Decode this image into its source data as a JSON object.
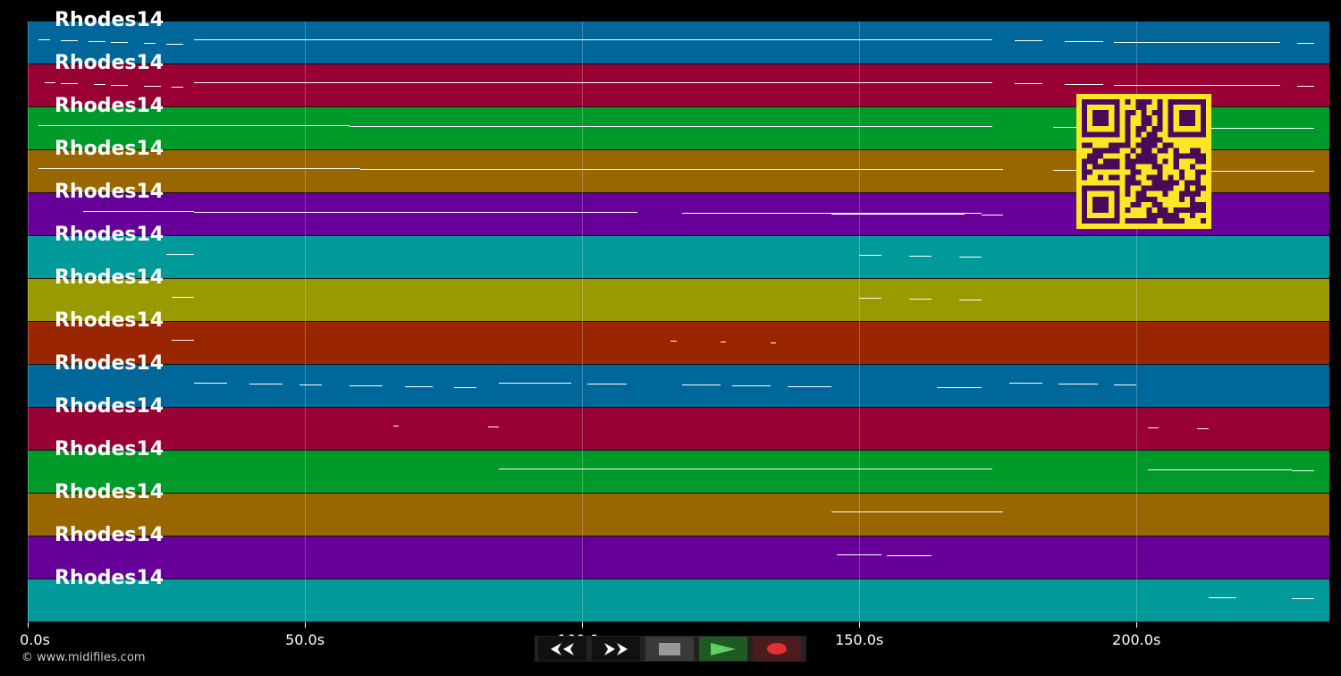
{
  "tracks": [
    {
      "label": "Rhodes14",
      "color": "#00679a",
      "notes": [
        [
          2,
          4
        ],
        [
          6,
          9
        ],
        [
          11,
          14
        ],
        [
          15,
          18
        ],
        [
          21,
          23
        ],
        [
          25,
          28
        ],
        [
          30,
          174
        ],
        [
          178,
          183
        ],
        [
          187,
          194
        ],
        [
          196,
          226
        ],
        [
          229,
          232
        ]
      ]
    },
    {
      "label": "Rhodes14",
      "color": "#990033",
      "notes": [
        [
          3,
          5
        ],
        [
          6,
          9
        ],
        [
          12,
          14
        ],
        [
          15,
          18
        ],
        [
          21,
          24
        ],
        [
          26,
          28
        ],
        [
          30,
          174
        ],
        [
          178,
          183
        ],
        [
          187,
          194
        ],
        [
          196,
          226
        ],
        [
          229,
          232
        ]
      ]
    },
    {
      "label": "Rhodes14",
      "color": "#009a2a",
      "notes": [
        [
          2,
          58
        ],
        [
          58,
          174
        ],
        [
          185,
          194
        ],
        [
          200,
          232
        ]
      ]
    },
    {
      "label": "Rhodes14",
      "color": "#996600",
      "notes": [
        [
          2,
          60
        ],
        [
          60,
          176
        ],
        [
          185,
          194
        ],
        [
          200,
          232
        ]
      ]
    },
    {
      "label": "Rhodes14",
      "color": "#660099",
      "notes": [
        [
          10,
          30
        ],
        [
          30,
          110
        ],
        [
          118,
          172
        ],
        [
          145,
          169
        ],
        [
          172,
          176
        ]
      ]
    },
    {
      "label": "Rhodes14",
      "color": "#009a9a",
      "notes": [
        [
          25,
          30
        ],
        [
          150,
          154
        ],
        [
          159,
          163
        ],
        [
          168,
          172
        ]
      ]
    },
    {
      "label": "Rhodes14",
      "color": "#999900",
      "notes": [
        [
          26,
          30
        ],
        [
          150,
          154
        ],
        [
          159,
          163
        ],
        [
          168,
          172
        ]
      ]
    },
    {
      "label": "Rhodes14",
      "color": "#992600",
      "notes": [
        [
          26,
          30
        ],
        [
          116,
          117
        ],
        [
          125,
          126
        ],
        [
          134,
          135
        ]
      ]
    },
    {
      "label": "Rhodes14",
      "color": "#00679a",
      "notes": [
        [
          30,
          36
        ],
        [
          40,
          46
        ],
        [
          49,
          53
        ],
        [
          58,
          64
        ],
        [
          68,
          73
        ],
        [
          77,
          81
        ],
        [
          85,
          98
        ],
        [
          101,
          108
        ],
        [
          118,
          125
        ],
        [
          127,
          134
        ],
        [
          137,
          145
        ],
        [
          164,
          172
        ],
        [
          177,
          183
        ],
        [
          186,
          193
        ],
        [
          196,
          200
        ]
      ]
    },
    {
      "label": "Rhodes14",
      "color": "#990033",
      "notes": [
        [
          66,
          67
        ],
        [
          83,
          85
        ],
        [
          202,
          204
        ],
        [
          211,
          213
        ]
      ]
    },
    {
      "label": "Rhodes14",
      "color": "#009a2a",
      "notes": [
        [
          85,
          174
        ],
        [
          202,
          228
        ],
        [
          228,
          232
        ]
      ]
    },
    {
      "label": "Rhodes14",
      "color": "#996600",
      "notes": [
        [
          145,
          176
        ]
      ]
    },
    {
      "label": "Rhodes14",
      "color": "#660099",
      "notes": [
        [
          146,
          154
        ],
        [
          155,
          163
        ]
      ]
    },
    {
      "label": "Rhodes14",
      "color": "#009a9a",
      "notes": [
        [
          213,
          218
        ],
        [
          228,
          232
        ]
      ]
    }
  ],
  "axis": {
    "max_seconds": 234.8,
    "ticks": [
      {
        "value": 0,
        "label": "0.0s"
      },
      {
        "value": 50,
        "label": "50.0s"
      },
      {
        "value": 100,
        "label": "100.0s"
      },
      {
        "value": 150,
        "label": "150.0s"
      },
      {
        "value": 200,
        "label": "200.0s"
      }
    ]
  },
  "copyright": "© www.midifiles.com",
  "controls": {
    "rewind": "rewind-icon",
    "forward": "fast-forward-icon",
    "stop": "stop-icon",
    "play": "play-icon",
    "record": "record-icon"
  }
}
